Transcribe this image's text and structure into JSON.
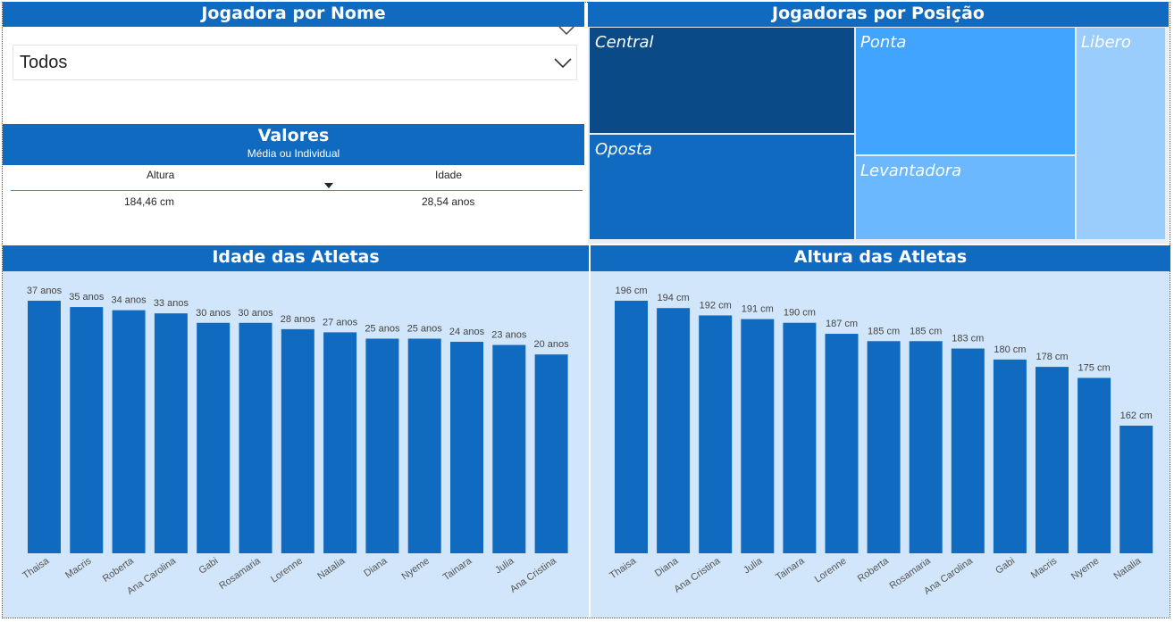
{
  "slicer": {
    "title": "Jogadora por Nome",
    "value": "Todos"
  },
  "treemap": {
    "title": "Jogadoras por Posição",
    "items": [
      {
        "label": "Central",
        "color": "#0A4A86"
      },
      {
        "label": "Oposta",
        "color": "#0F6AC0"
      },
      {
        "label": "Ponta",
        "color": "#41A4FF"
      },
      {
        "label": "Levantadora",
        "color": "#6CB8FF"
      },
      {
        "label": "Libero",
        "color": "#9ACCFC"
      }
    ]
  },
  "card": {
    "title": "Valores",
    "subtitle": "Média ou Individual",
    "col1_header": "Altura",
    "col2_header": "Idade",
    "col1_value": "184,46 cm",
    "col2_value": "28,54 anos"
  },
  "colors": {
    "header": "#0F6AC0",
    "bar": "#0F6AC0",
    "chart_bg": "#D1E6FA"
  },
  "chart_data": [
    {
      "type": "bar",
      "title": "Idade das Atletas",
      "categories": [
        "Thaisa",
        "Macris",
        "Roberta",
        "Ana Carolina",
        "Gabi",
        "Rosamaria",
        "Lorenne",
        "Natalia",
        "Diana",
        "Nyeme",
        "Tainara",
        "Julia",
        "Ana Cristina"
      ],
      "values": [
        37,
        35,
        34,
        33,
        30,
        30,
        28,
        27,
        25,
        25,
        24,
        23,
        20
      ],
      "data_labels": [
        "37 anos",
        "35 anos",
        "34 anos",
        "33 anos",
        "30 anos",
        "30 anos",
        "28 anos",
        "27 anos",
        "25 anos",
        "25 anos",
        "24 anos",
        "23 anos",
        "20 anos"
      ],
      "ylim": [
        0,
        37
      ]
    },
    {
      "type": "bar",
      "title": "Altura das Atletas",
      "categories": [
        "Thaisa",
        "Diana",
        "Ana Cristina",
        "Julia",
        "Tainara",
        "Lorenne",
        "Roberta",
        "Rosamaria",
        "Ana Carolina",
        "Gabi",
        "Macris",
        "Nyeme",
        "Natalia"
      ],
      "values": [
        196,
        194,
        192,
        191,
        190,
        187,
        185,
        185,
        183,
        180,
        178,
        175,
        162
      ],
      "data_labels": [
        "196 cm",
        "194 cm",
        "192 cm",
        "191 cm",
        "190 cm",
        "187 cm",
        "185 cm",
        "185 cm",
        "183 cm",
        "180 cm",
        "178 cm",
        "175 cm",
        "162 cm"
      ],
      "ylim": [
        145,
        196
      ]
    }
  ]
}
